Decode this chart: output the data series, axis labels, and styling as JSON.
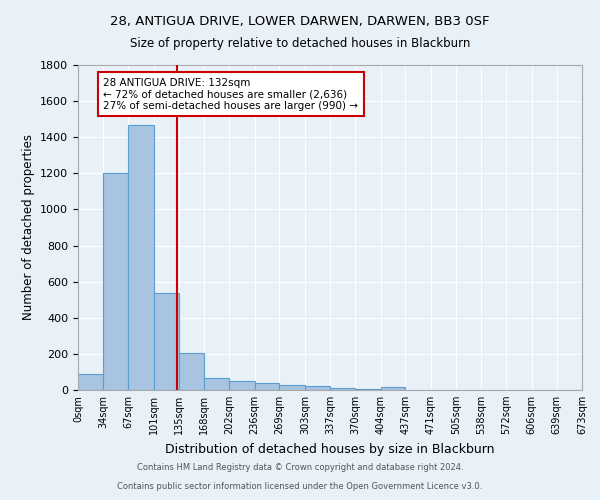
{
  "title_line1": "28, ANTIGUA DRIVE, LOWER DARWEN, DARWEN, BB3 0SF",
  "title_line2": "Size of property relative to detached houses in Blackburn",
  "xlabel": "Distribution of detached houses by size in Blackburn",
  "ylabel": "Number of detached properties",
  "footnote_line1": "Contains HM Land Registry data © Crown copyright and database right 2024.",
  "footnote_line2": "Contains public sector information licensed under the Open Government Licence v3.0.",
  "bar_edges": [
    0,
    34,
    67,
    101,
    135,
    168,
    202,
    236,
    269,
    303,
    337,
    370,
    404,
    437,
    471,
    505,
    538,
    572,
    606,
    639,
    673
  ],
  "bar_heights": [
    90,
    1200,
    1470,
    540,
    205,
    65,
    50,
    40,
    28,
    22,
    10,
    5,
    14,
    0,
    0,
    0,
    0,
    0,
    0,
    0
  ],
  "bar_color": "#a8c4e0",
  "bar_edgecolor": "#5a9fd4",
  "property_size": 132,
  "vline_color": "#cc0000",
  "annotation_text": "28 ANTIGUA DRIVE: 132sqm\n← 72% of detached houses are smaller (2,636)\n27% of semi-detached houses are larger (990) →",
  "annotation_box_edgecolor": "#cc0000",
  "annotation_box_facecolor": "#ffffff",
  "ylim": [
    0,
    1800
  ],
  "background_color": "#e8f0f8",
  "grid_color": "#ffffff",
  "tick_labels": [
    "0sqm",
    "34sqm",
    "67sqm",
    "101sqm",
    "135sqm",
    "168sqm",
    "202sqm",
    "236sqm",
    "269sqm",
    "303sqm",
    "337sqm",
    "370sqm",
    "404sqm",
    "437sqm",
    "471sqm",
    "505sqm",
    "538sqm",
    "572sqm",
    "606sqm",
    "639sqm",
    "673sqm"
  ]
}
